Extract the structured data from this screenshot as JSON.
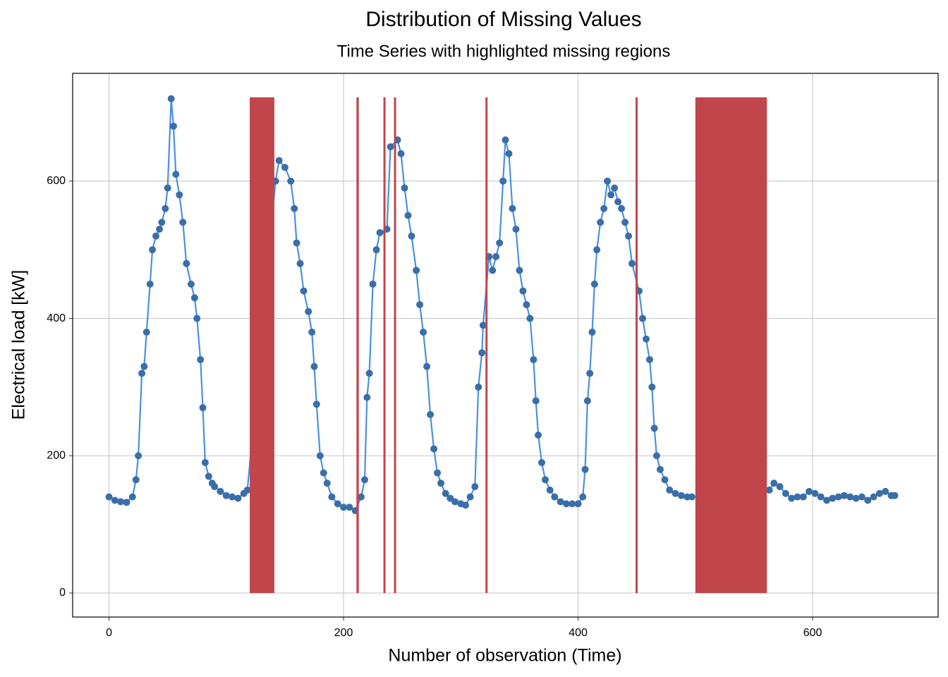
{
  "chart_data": {
    "type": "line",
    "title": "Distribution of Missing Values",
    "subtitle": "Time Series with highlighted missing regions",
    "x_label": "Number of observation (Time)",
    "y_label": "Electrical load [kW]",
    "xlim": [
      -31,
      707
    ],
    "ylim": [
      -35,
      757
    ],
    "xticks": [
      0,
      200,
      400,
      600
    ],
    "yticks": [
      0,
      200,
      400,
      600
    ],
    "grid": true,
    "x": [
      0,
      5,
      10,
      15,
      20,
      23,
      25,
      28,
      30,
      32,
      35,
      37,
      40,
      43,
      45,
      48,
      50,
      53,
      55,
      57,
      60,
      63,
      66,
      70,
      73,
      75,
      78,
      80,
      82,
      85,
      88,
      90,
      95,
      100,
      105,
      110,
      115,
      118,
      142,
      145,
      150,
      155,
      158,
      160,
      163,
      166,
      170,
      173,
      175,
      177,
      180,
      183,
      186,
      190,
      195,
      200,
      205,
      210,
      215,
      218,
      220,
      222,
      225,
      228,
      231,
      237,
      240,
      246,
      249,
      252,
      255,
      258,
      262,
      265,
      268,
      271,
      274,
      277,
      280,
      283,
      287,
      291,
      295,
      300,
      304,
      308,
      312,
      315,
      318,
      319,
      324,
      327,
      330,
      333,
      336,
      338,
      341,
      344,
      347,
      350,
      353,
      356,
      359,
      362,
      364,
      366,
      369,
      372,
      376,
      380,
      385,
      390,
      395,
      400,
      404,
      406,
      408,
      410,
      412,
      414,
      416,
      419,
      422,
      425,
      428,
      431,
      434,
      437,
      440,
      443,
      446,
      452,
      455,
      458,
      461,
      463,
      465,
      467,
      470,
      474,
      478,
      483,
      488,
      493,
      497,
      563,
      567,
      572,
      577,
      582,
      587,
      592,
      597,
      602,
      607,
      612,
      617,
      622,
      627,
      632,
      637,
      642,
      647,
      652,
      657,
      662,
      667,
      670
    ],
    "series": [
      {
        "name": "Electrical load",
        "color": "#4a90e2",
        "point_color": "#3a6ea8",
        "values": [
          140,
          135,
          133,
          132,
          140,
          165,
          200,
          320,
          330,
          380,
          450,
          500,
          520,
          530,
          540,
          560,
          590,
          720,
          680,
          610,
          580,
          540,
          480,
          450,
          430,
          400,
          340,
          270,
          190,
          170,
          160,
          155,
          148,
          142,
          140,
          138,
          145,
          150,
          600,
          630,
          620,
          600,
          560,
          510,
          480,
          440,
          410,
          380,
          330,
          275,
          200,
          175,
          160,
          140,
          130,
          125,
          125,
          120,
          140,
          165,
          285,
          320,
          450,
          500,
          525,
          530,
          650,
          660,
          640,
          590,
          550,
          520,
          470,
          420,
          380,
          330,
          260,
          210,
          175,
          160,
          145,
          138,
          133,
          130,
          128,
          140,
          155,
          300,
          350,
          390,
          490,
          470,
          490,
          510,
          600,
          660,
          640,
          560,
          530,
          470,
          440,
          420,
          400,
          340,
          280,
          230,
          190,
          165,
          150,
          140,
          133,
          130,
          130,
          130,
          140,
          180,
          280,
          320,
          380,
          450,
          500,
          540,
          560,
          600,
          580,
          590,
          570,
          560,
          540,
          520,
          480,
          440,
          400,
          370,
          340,
          300,
          240,
          200,
          180,
          165,
          150,
          145,
          142,
          140,
          140,
          150,
          160,
          155,
          145,
          138,
          140,
          140,
          148,
          145,
          140,
          135,
          138,
          140,
          142,
          140,
          138,
          140,
          135,
          140,
          145,
          148,
          142,
          142
        ]
      }
    ],
    "missing": {
      "color": "#c0464b",
      "start": [
        120,
        211,
        234,
        243,
        321,
        449,
        500
      ],
      "end": [
        141,
        213,
        235,
        244,
        322,
        450,
        561
      ],
      "top": 722
    }
  }
}
